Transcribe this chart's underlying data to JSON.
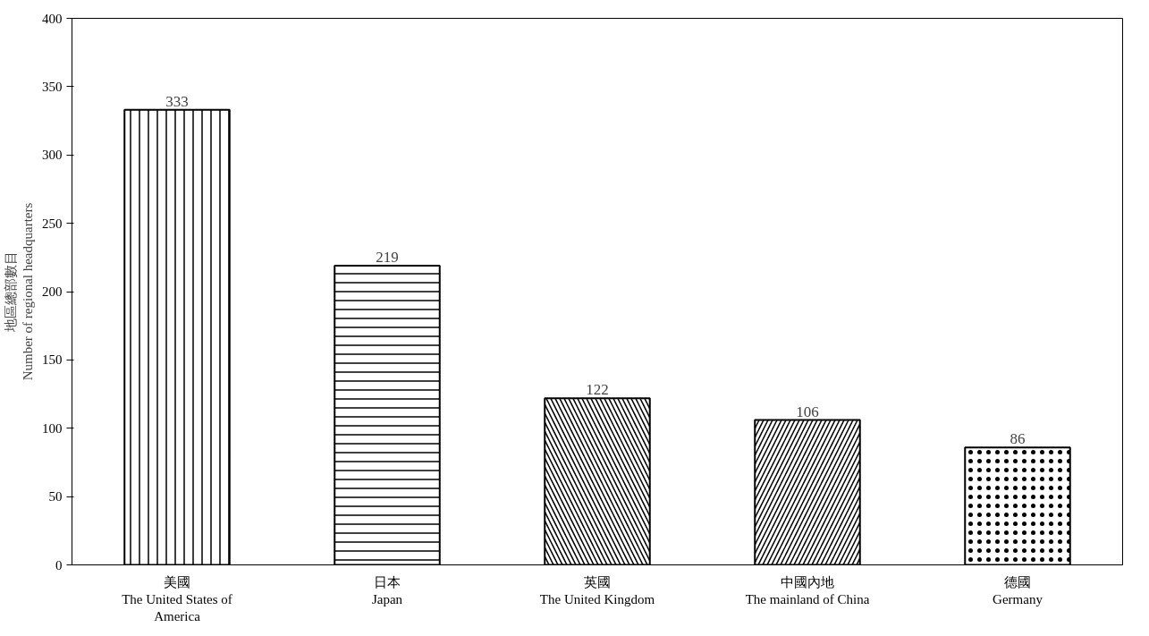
{
  "chart_data": {
    "type": "bar",
    "ylabel": "地區總部數目\nNumber of regional headquarters",
    "categories": [
      "美國\nThe United States of\nAmerica",
      "日本\nJapan",
      "英國\nThe United Kingdom",
      "中國內地\nThe mainland of China",
      "德國\nGermany"
    ],
    "values": [
      333,
      219,
      122,
      106,
      86
    ],
    "colors": [
      "#ffffff",
      "#ffffff",
      "#ffffff",
      "#ffffff",
      "#ffffff"
    ],
    "ylim": [
      0,
      400
    ],
    "yticks": [
      0,
      50,
      100,
      150,
      200,
      250,
      300,
      350,
      400
    ],
    "grid": false,
    "data_labels": true
  }
}
